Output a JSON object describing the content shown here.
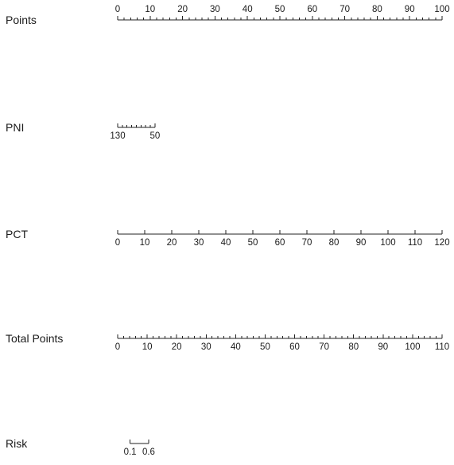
{
  "chart_data": {
    "type": "nomogram",
    "rows": [
      {
        "key": "points",
        "label": "Points",
        "min": 0,
        "max": 100,
        "labels": [
          0,
          10,
          20,
          30,
          40,
          50,
          60,
          70,
          80,
          90,
          100
        ],
        "minor_step": 2,
        "label_pos": "above"
      },
      {
        "key": "pni",
        "label": "PNI",
        "from": 130,
        "to": 50,
        "points_at_from": 0,
        "points_at_to": 11.5,
        "labels": [
          130,
          50
        ],
        "minor_step": 10,
        "label_pos": "below"
      },
      {
        "key": "pct",
        "label": "PCT",
        "min": 0,
        "max": 120,
        "labels": [
          0,
          10,
          20,
          30,
          40,
          50,
          60,
          70,
          80,
          90,
          100,
          110,
          120
        ],
        "minor_step": 10,
        "label_pos": "below"
      },
      {
        "key": "total",
        "label": "Total Points",
        "min": 0,
        "max": 110,
        "labels": [
          0,
          10,
          20,
          30,
          40,
          50,
          60,
          70,
          80,
          90,
          100,
          110
        ],
        "minor_step": 2,
        "label_pos": "below"
      },
      {
        "key": "risk",
        "label": "Risk",
        "labels": [
          0.1,
          0.6
        ],
        "total_points_at_labels": [
          4.2,
          10.5
        ],
        "label_pos": "below"
      }
    ]
  }
}
